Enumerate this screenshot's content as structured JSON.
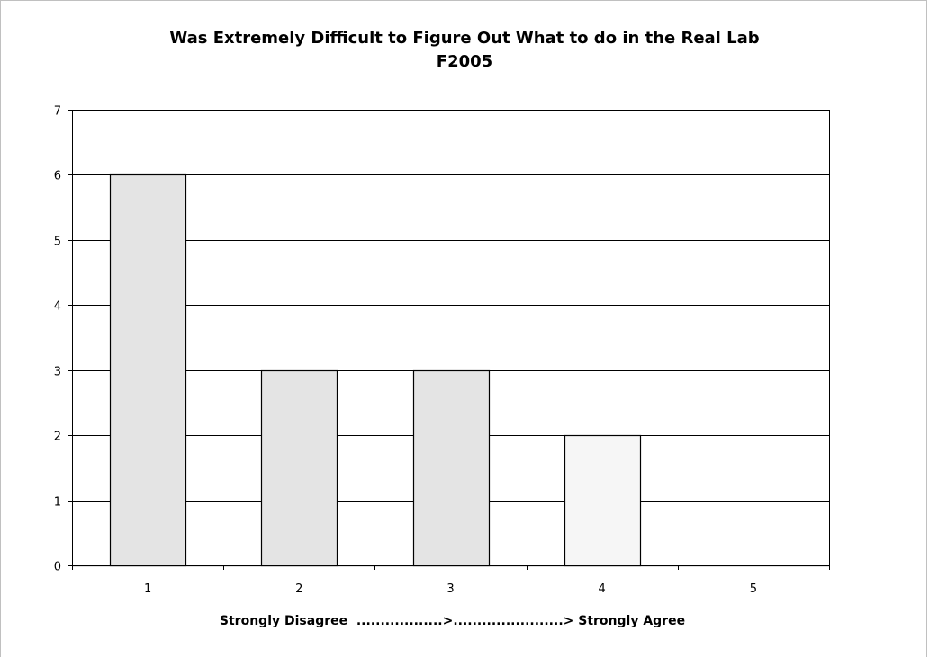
{
  "chart_data": {
    "type": "bar",
    "title": "Was Extremely Difficult to Figure Out What to do in the Real Lab",
    "subtitle": "F2005",
    "categories": [
      "1",
      "2",
      "3",
      "4",
      "5"
    ],
    "values": [
      6,
      3,
      3,
      2,
      0
    ],
    "xlabel": "Strongly Disagree  ..................>.......................> Strongly Agree",
    "ylabel": "",
    "ylim": [
      0,
      7
    ],
    "yticks": [
      0,
      1,
      2,
      3,
      4,
      5,
      6,
      7
    ],
    "grid": true,
    "legend": "none",
    "colors": {
      "bar_fill": "#e4e4e4",
      "bar_fill_light": "#f6f6f6",
      "bar_stroke": "#000000",
      "gridline": "#000000"
    }
  }
}
